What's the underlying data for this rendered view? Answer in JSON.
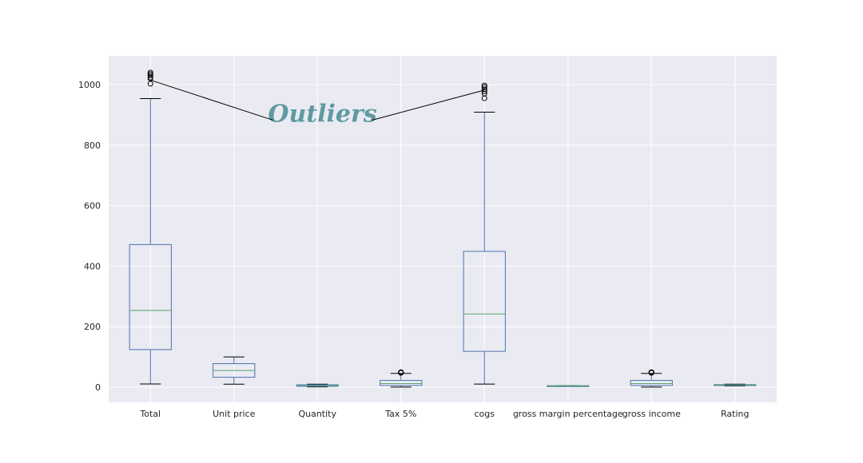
{
  "chart_data": {
    "type": "box",
    "title": "",
    "xlabel": "",
    "ylabel": "",
    "ylim": [
      -50,
      1095
    ],
    "yticks": [
      0,
      200,
      400,
      600,
      800,
      1000
    ],
    "grid": true,
    "colors": {
      "background": "#eaeaf2",
      "grid": "#ffffff",
      "box": "#4c72b0",
      "median": "#55a868",
      "whisker_cap": "#000000",
      "flier": "#000000"
    },
    "categories": [
      "Total",
      "Unit price",
      "Quantity",
      "Tax 5%",
      "cogs",
      "gross margin percentage",
      "gross income",
      "Rating"
    ],
    "boxes": [
      {
        "whislo": 10.7,
        "q1": 124.4,
        "med": 253.8,
        "q3": 471.4,
        "whishi": 954.0,
        "fliers": [
          1003,
          1020,
          1023,
          1030,
          1035,
          1040
        ]
      },
      {
        "whislo": 10.1,
        "q1": 32.9,
        "med": 55.2,
        "q3": 77.9,
        "whishi": 99.9,
        "fliers": []
      },
      {
        "whislo": 1,
        "q1": 3,
        "med": 5,
        "q3": 8,
        "whishi": 10,
        "fliers": []
      },
      {
        "whislo": 0.5,
        "q1": 5.9,
        "med": 12.1,
        "q3": 22.4,
        "whishi": 45.5,
        "fliers": [
          47.7,
          48.0,
          48.6,
          49.3,
          49.5
        ]
      },
      {
        "whislo": 10.2,
        "q1": 118.5,
        "med": 241.8,
        "q3": 448.9,
        "whishi": 909.0,
        "fliers": [
          955,
          970,
          978,
          985,
          992,
          997
        ]
      },
      {
        "whislo": 4.76,
        "q1": 4.76,
        "med": 4.76,
        "q3": 4.76,
        "whishi": 4.76,
        "fliers": []
      },
      {
        "whislo": 0.5,
        "q1": 5.9,
        "med": 12.1,
        "q3": 22.4,
        "whishi": 45.5,
        "fliers": [
          47.7,
          48.0,
          48.6,
          49.3,
          49.5
        ]
      },
      {
        "whislo": 4,
        "q1": 5.5,
        "med": 7,
        "q3": 8.5,
        "whishi": 10,
        "fliers": []
      }
    ],
    "annotation": {
      "text": "Outliers",
      "points_to": [
        {
          "category": "Total",
          "y": 1015
        },
        {
          "category": "cogs",
          "y": 982
        }
      ]
    }
  }
}
